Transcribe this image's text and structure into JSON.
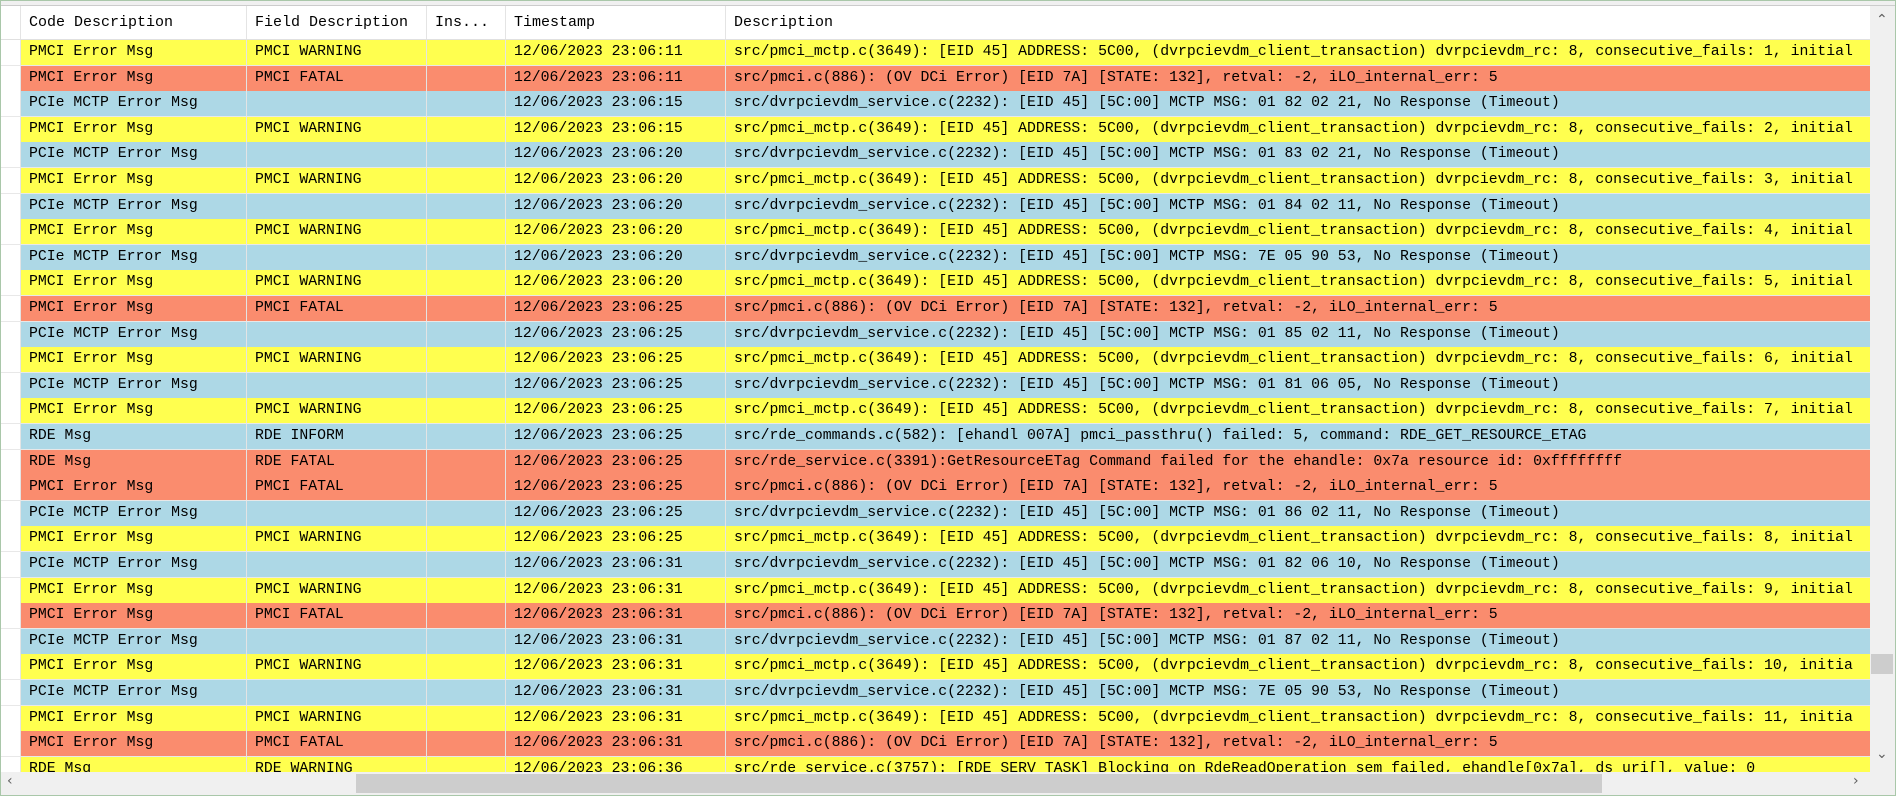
{
  "colors": {
    "warning": "#ffff4f",
    "fatal": "#fa8c6e",
    "info": "#add8e6"
  },
  "columns": [
    "Code Description",
    "Field Description",
    "Ins...",
    "Timestamp",
    "Description"
  ],
  "rows": [
    {
      "type": "warning",
      "code": "PMCI Error Msg",
      "field": "PMCI WARNING",
      "ins": "",
      "ts": "12/06/2023 23:06:11",
      "desc": "src/pmci_mctp.c(3649): [EID 45] ADDRESS: 5C00, (dvrpcievdm_client_transaction) dvrpcievdm_rc: 8, consecutive_fails: 1, initial"
    },
    {
      "type": "fatal",
      "code": "PMCI Error Msg",
      "field": "PMCI FATAL",
      "ins": "",
      "ts": "12/06/2023 23:06:11",
      "desc": "src/pmci.c(886): (OV DCi Error) [EID 7A] [STATE: 132], retval: -2, iLO_internal_err: 5"
    },
    {
      "type": "info",
      "code": "PCIe MCTP Error Msg",
      "field": "",
      "ins": "",
      "ts": "12/06/2023 23:06:15",
      "desc": "src/dvrpcievdm_service.c(2232): [EID 45] [5C:00] MCTP MSG: 01 82 02 21, No Response (Timeout)"
    },
    {
      "type": "warning",
      "code": "PMCI Error Msg",
      "field": "PMCI WARNING",
      "ins": "",
      "ts": "12/06/2023 23:06:15",
      "desc": "src/pmci_mctp.c(3649): [EID 45] ADDRESS: 5C00, (dvrpcievdm_client_transaction) dvrpcievdm_rc: 8, consecutive_fails: 2, initial"
    },
    {
      "type": "info",
      "code": "PCIe MCTP Error Msg",
      "field": "",
      "ins": "",
      "ts": "12/06/2023 23:06:20",
      "desc": "src/dvrpcievdm_service.c(2232): [EID 45] [5C:00] MCTP MSG: 01 83 02 21, No Response (Timeout)"
    },
    {
      "type": "warning",
      "code": "PMCI Error Msg",
      "field": "PMCI WARNING",
      "ins": "",
      "ts": "12/06/2023 23:06:20",
      "desc": "src/pmci_mctp.c(3649): [EID 45] ADDRESS: 5C00, (dvrpcievdm_client_transaction) dvrpcievdm_rc: 8, consecutive_fails: 3, initial"
    },
    {
      "type": "info",
      "code": "PCIe MCTP Error Msg",
      "field": "",
      "ins": "",
      "ts": "12/06/2023 23:06:20",
      "desc": "src/dvrpcievdm_service.c(2232): [EID 45] [5C:00] MCTP MSG: 01 84 02 11, No Response (Timeout)"
    },
    {
      "type": "warning",
      "code": "PMCI Error Msg",
      "field": "PMCI WARNING",
      "ins": "",
      "ts": "12/06/2023 23:06:20",
      "desc": "src/pmci_mctp.c(3649): [EID 45] ADDRESS: 5C00, (dvrpcievdm_client_transaction) dvrpcievdm_rc: 8, consecutive_fails: 4, initial"
    },
    {
      "type": "info",
      "code": "PCIe MCTP Error Msg",
      "field": "",
      "ins": "",
      "ts": "12/06/2023 23:06:20",
      "desc": "src/dvrpcievdm_service.c(2232): [EID 45] [5C:00] MCTP MSG: 7E 05 90 53, No Response (Timeout)"
    },
    {
      "type": "warning",
      "code": "PMCI Error Msg",
      "field": "PMCI WARNING",
      "ins": "",
      "ts": "12/06/2023 23:06:20",
      "desc": "src/pmci_mctp.c(3649): [EID 45] ADDRESS: 5C00, (dvrpcievdm_client_transaction) dvrpcievdm_rc: 8, consecutive_fails: 5, initial"
    },
    {
      "type": "fatal",
      "code": "PMCI Error Msg",
      "field": "PMCI FATAL",
      "ins": "",
      "ts": "12/06/2023 23:06:25",
      "desc": "src/pmci.c(886): (OV DCi Error) [EID 7A] [STATE: 132], retval: -2, iLO_internal_err: 5"
    },
    {
      "type": "info",
      "code": "PCIe MCTP Error Msg",
      "field": "",
      "ins": "",
      "ts": "12/06/2023 23:06:25",
      "desc": "src/dvrpcievdm_service.c(2232): [EID 45] [5C:00] MCTP MSG: 01 85 02 11, No Response (Timeout)"
    },
    {
      "type": "warning",
      "code": "PMCI Error Msg",
      "field": "PMCI WARNING",
      "ins": "",
      "ts": "12/06/2023 23:06:25",
      "desc": "src/pmci_mctp.c(3649): [EID 45] ADDRESS: 5C00, (dvrpcievdm_client_transaction) dvrpcievdm_rc: 8, consecutive_fails: 6, initial"
    },
    {
      "type": "info",
      "code": "PCIe MCTP Error Msg",
      "field": "",
      "ins": "",
      "ts": "12/06/2023 23:06:25",
      "desc": "src/dvrpcievdm_service.c(2232): [EID 45] [5C:00] MCTP MSG: 01 81 06 05, No Response (Timeout)"
    },
    {
      "type": "warning",
      "code": "PMCI Error Msg",
      "field": "PMCI WARNING",
      "ins": "",
      "ts": "12/06/2023 23:06:25",
      "desc": "src/pmci_mctp.c(3649): [EID 45] ADDRESS: 5C00, (dvrpcievdm_client_transaction) dvrpcievdm_rc: 8, consecutive_fails: 7, initial"
    },
    {
      "type": "info",
      "code": "RDE Msg",
      "field": "RDE INFORM",
      "ins": "",
      "ts": "12/06/2023 23:06:25",
      "desc": "src/rde_commands.c(582): [ehandl 007A] pmci_passthru() failed: 5, command: RDE_GET_RESOURCE_ETAG"
    },
    {
      "type": "fatal",
      "code": "RDE Msg",
      "field": "RDE FATAL",
      "ins": "",
      "ts": "12/06/2023 23:06:25",
      "desc": "src/rde_service.c(3391):GetResourceETag Command failed for the ehandle: 0x7a resource id: 0xffffffff"
    },
    {
      "type": "fatal",
      "code": "PMCI Error Msg",
      "field": "PMCI FATAL",
      "ins": "",
      "ts": "12/06/2023 23:06:25",
      "desc": "src/pmci.c(886): (OV DCi Error) [EID 7A] [STATE: 132], retval: -2, iLO_internal_err: 5"
    },
    {
      "type": "info",
      "code": "PCIe MCTP Error Msg",
      "field": "",
      "ins": "",
      "ts": "12/06/2023 23:06:25",
      "desc": "src/dvrpcievdm_service.c(2232): [EID 45] [5C:00] MCTP MSG: 01 86 02 11, No Response (Timeout)"
    },
    {
      "type": "warning",
      "code": "PMCI Error Msg",
      "field": "PMCI WARNING",
      "ins": "",
      "ts": "12/06/2023 23:06:25",
      "desc": "src/pmci_mctp.c(3649): [EID 45] ADDRESS: 5C00, (dvrpcievdm_client_transaction) dvrpcievdm_rc: 8, consecutive_fails: 8, initial"
    },
    {
      "type": "info",
      "code": "PCIe MCTP Error Msg",
      "field": "",
      "ins": "",
      "ts": "12/06/2023 23:06:31",
      "desc": "src/dvrpcievdm_service.c(2232): [EID 45] [5C:00] MCTP MSG: 01 82 06 10, No Response (Timeout)"
    },
    {
      "type": "warning",
      "code": "PMCI Error Msg",
      "field": "PMCI WARNING",
      "ins": "",
      "ts": "12/06/2023 23:06:31",
      "desc": "src/pmci_mctp.c(3649): [EID 45] ADDRESS: 5C00, (dvrpcievdm_client_transaction) dvrpcievdm_rc: 8, consecutive_fails: 9, initial"
    },
    {
      "type": "fatal",
      "code": "PMCI Error Msg",
      "field": "PMCI FATAL",
      "ins": "",
      "ts": "12/06/2023 23:06:31",
      "desc": "src/pmci.c(886): (OV DCi Error) [EID 7A] [STATE: 132], retval: -2, iLO_internal_err: 5"
    },
    {
      "type": "info",
      "code": "PCIe MCTP Error Msg",
      "field": "",
      "ins": "",
      "ts": "12/06/2023 23:06:31",
      "desc": "src/dvrpcievdm_service.c(2232): [EID 45] [5C:00] MCTP MSG: 01 87 02 11, No Response (Timeout)"
    },
    {
      "type": "warning",
      "code": "PMCI Error Msg",
      "field": "PMCI WARNING",
      "ins": "",
      "ts": "12/06/2023 23:06:31",
      "desc": "src/pmci_mctp.c(3649): [EID 45] ADDRESS: 5C00, (dvrpcievdm_client_transaction) dvrpcievdm_rc: 8, consecutive_fails: 10, initia"
    },
    {
      "type": "info",
      "code": "PCIe MCTP Error Msg",
      "field": "",
      "ins": "",
      "ts": "12/06/2023 23:06:31",
      "desc": "src/dvrpcievdm_service.c(2232): [EID 45] [5C:00] MCTP MSG: 7E 05 90 53, No Response (Timeout)"
    },
    {
      "type": "warning",
      "code": "PMCI Error Msg",
      "field": "PMCI WARNING",
      "ins": "",
      "ts": "12/06/2023 23:06:31",
      "desc": "src/pmci_mctp.c(3649): [EID 45] ADDRESS: 5C00, (dvrpcievdm_client_transaction) dvrpcievdm_rc: 8, consecutive_fails: 11, initia"
    },
    {
      "type": "fatal",
      "code": "PMCI Error Msg",
      "field": "PMCI FATAL",
      "ins": "",
      "ts": "12/06/2023 23:06:31",
      "desc": "src/pmci.c(886): (OV DCi Error) [EID 7A] [STATE: 132], retval: -2, iLO_internal_err: 5"
    },
    {
      "type": "warning",
      "code": "RDE Msg",
      "field": "RDE WARNING",
      "ins": "",
      "ts": "12/06/2023 23:06:36",
      "desc": "src/rde_service.c(3757): [RDE_SERV_TASK] Blocking on RdeReadOperation sem failed, ehandle[0x7a], ds_uri[], value: 0"
    }
  ],
  "scrollbars": {
    "up_icon": "chevron-up-icon",
    "down_icon": "chevron-down-icon",
    "left_icon": "chevron-left-icon",
    "right_icon": "chevron-right-icon"
  }
}
